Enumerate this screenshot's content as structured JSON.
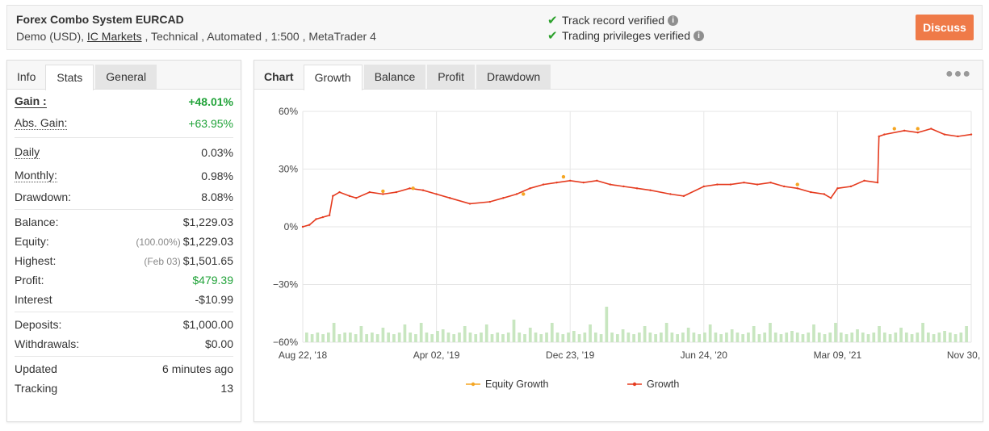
{
  "header": {
    "system_name": "Forex Combo System EURCAD",
    "info_prefix": "Demo (USD), ",
    "broker": "IC Markets",
    "info_suffix": " , Technical , Automated , 1:500 , MetaTrader 4",
    "track_record": "Track record verified",
    "trading_privileges": "Trading privileges verified",
    "discuss_label": "Discuss",
    "accent_color": "#ef7a48"
  },
  "left_tabs": [
    "Info",
    "Stats",
    "General"
  ],
  "stats": {
    "gain": {
      "label": "Gain :",
      "value": "+48.01%"
    },
    "abs_gain": {
      "label": "Abs. Gain:",
      "value": "+63.95%"
    },
    "daily": {
      "label": "Daily",
      "value": "0.03%"
    },
    "monthly": {
      "label": "Monthly:",
      "value": "0.98%"
    },
    "drawdown": {
      "label": "Drawdown:",
      "value": "8.08%"
    },
    "balance": {
      "label": "Balance:",
      "value": "$1,229.03"
    },
    "equity": {
      "label": "Equity:",
      "note": "(100.00%)",
      "value": "$1,229.03"
    },
    "highest": {
      "label": "Highest:",
      "note": "(Feb 03)",
      "value": "$1,501.65"
    },
    "profit": {
      "label": "Profit:",
      "value": "$479.39"
    },
    "interest": {
      "label": "Interest",
      "value": "-$10.99"
    },
    "deposits": {
      "label": "Deposits:",
      "value": "$1,000.00"
    },
    "withdrawals": {
      "label": "Withdrawals:",
      "value": "$0.00"
    },
    "updated": {
      "label": "Updated",
      "value": "6 minutes ago"
    },
    "tracking": {
      "label": "Tracking",
      "value": "13"
    }
  },
  "chart_tabs": [
    "Chart",
    "Growth",
    "Balance",
    "Profit",
    "Drawdown"
  ],
  "more_icon": "ellipsis-icon",
  "chart_data": {
    "type": "line",
    "y_ticks": [
      "60%",
      "30%",
      "0%",
      "−30%",
      "−60%"
    ],
    "x_ticks": [
      "Aug 22, '18",
      "Apr 02, '19",
      "Dec 23, '19",
      "Jun 24, '20",
      "Mar 09, '21",
      "Nov 30, '21"
    ],
    "ylim": [
      -60,
      60
    ],
    "xlim": [
      0,
      1.0
    ],
    "grid": true,
    "legend_position": "bottom",
    "series": [
      {
        "name": "Equity Growth",
        "color": "#f5a623"
      },
      {
        "name": "Growth",
        "color": "#e53b1f"
      }
    ],
    "growth": [
      [
        0,
        0
      ],
      [
        0.01,
        1
      ],
      [
        0.02,
        4
      ],
      [
        0.03,
        5
      ],
      [
        0.04,
        6
      ],
      [
        0.045,
        16
      ],
      [
        0.055,
        18
      ],
      [
        0.07,
        16
      ],
      [
        0.08,
        15
      ],
      [
        0.1,
        18
      ],
      [
        0.12,
        17
      ],
      [
        0.14,
        18
      ],
      [
        0.16,
        20
      ],
      [
        0.18,
        19
      ],
      [
        0.2,
        17
      ],
      [
        0.22,
        15
      ],
      [
        0.25,
        12
      ],
      [
        0.28,
        13
      ],
      [
        0.3,
        15
      ],
      [
        0.32,
        17
      ],
      [
        0.34,
        20
      ],
      [
        0.36,
        22
      ],
      [
        0.38,
        23
      ],
      [
        0.4,
        24
      ],
      [
        0.42,
        23
      ],
      [
        0.44,
        24
      ],
      [
        0.46,
        22
      ],
      [
        0.48,
        21
      ],
      [
        0.5,
        20
      ],
      [
        0.52,
        19
      ],
      [
        0.55,
        17
      ],
      [
        0.57,
        16
      ],
      [
        0.6,
        21
      ],
      [
        0.62,
        22
      ],
      [
        0.64,
        22
      ],
      [
        0.66,
        23
      ],
      [
        0.68,
        22
      ],
      [
        0.7,
        23
      ],
      [
        0.72,
        21
      ],
      [
        0.74,
        20
      ],
      [
        0.76,
        18
      ],
      [
        0.78,
        17
      ],
      [
        0.79,
        15
      ],
      [
        0.8,
        20
      ],
      [
        0.82,
        21
      ],
      [
        0.84,
        24
      ],
      [
        0.86,
        23
      ],
      [
        0.862,
        47
      ],
      [
        0.87,
        48
      ],
      [
        0.9,
        50
      ],
      [
        0.92,
        49
      ],
      [
        0.94,
        51
      ],
      [
        0.96,
        48
      ],
      [
        0.98,
        47
      ],
      [
        1.0,
        48
      ]
    ],
    "equity_marks": [
      [
        0.12,
        18.5
      ],
      [
        0.165,
        20
      ],
      [
        0.33,
        17
      ],
      [
        0.39,
        26
      ],
      [
        0.74,
        22
      ],
      [
        0.885,
        51
      ],
      [
        0.92,
        51
      ]
    ],
    "volume_bars": [
      6,
      5,
      6,
      5,
      6,
      12,
      5,
      6,
      6,
      5,
      10,
      5,
      6,
      5,
      9,
      6,
      5,
      6,
      11,
      6,
      5,
      12,
      6,
      5,
      7,
      8,
      6,
      5,
      6,
      10,
      6,
      5,
      6,
      11,
      5,
      6,
      5,
      6,
      14,
      6,
      5,
      9,
      6,
      5,
      6,
      12,
      6,
      5,
      6,
      7,
      5,
      6,
      11,
      6,
      5,
      22,
      6,
      5,
      8,
      6,
      5,
      6,
      10,
      6,
      5,
      6,
      12,
      6,
      5,
      6,
      9,
      6,
      5,
      6,
      11,
      6,
      5,
      6,
      8,
      6,
      5,
      6,
      10,
      5,
      6,
      12,
      6,
      5,
      6,
      7,
      6,
      5,
      6,
      11,
      6,
      5,
      6,
      12,
      6,
      5,
      6,
      8,
      6,
      5,
      6,
      10,
      6,
      5,
      6,
      9,
      6,
      5,
      6,
      12,
      6,
      5,
      6,
      7,
      6,
      5,
      6,
      10
    ]
  }
}
